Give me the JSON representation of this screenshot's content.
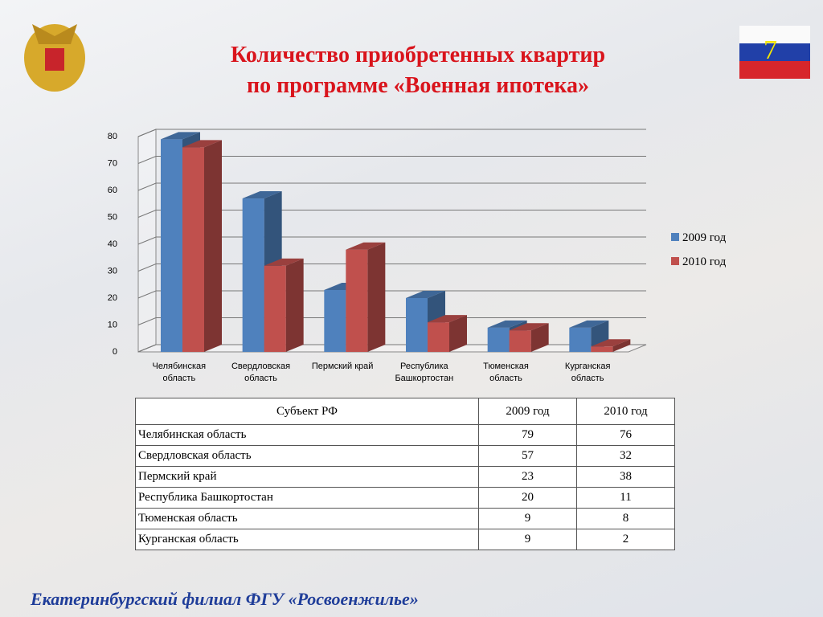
{
  "chart_data": {
    "type": "bar3d",
    "title": "Количество приобретенных квартир\nпо программе «Военная ипотека»",
    "categories": [
      "Челябинская область",
      "Свердловская область",
      "Пермский край",
      "Республика Башкортостан",
      "Тюменская область",
      "Курганская область"
    ],
    "series": [
      {
        "name": "2009 год",
        "color": "#4f81bd",
        "values": [
          79,
          57,
          23,
          20,
          9,
          9
        ]
      },
      {
        "name": "2010 год",
        "color": "#c0504d",
        "values": [
          76,
          32,
          38,
          11,
          8,
          2
        ]
      }
    ],
    "ylim": [
      0,
      80
    ],
    "yticks": [
      0,
      10,
      20,
      30,
      40,
      50,
      60,
      70,
      80
    ],
    "grid": true,
    "legend": "right"
  },
  "table": {
    "header": "Субъект РФ"
  },
  "slide_number": "7",
  "footer": "Екатеринбургский филиал ФГУ «Росвоенжилье»"
}
